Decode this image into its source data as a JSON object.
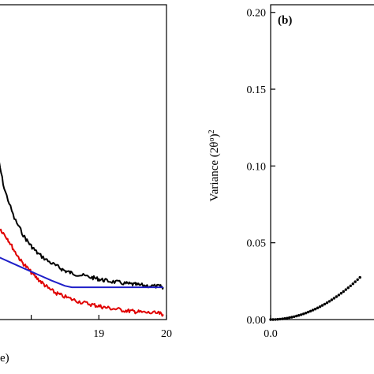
{
  "chart_data": [
    {
      "panel": "a",
      "type": "line",
      "xlabel": "e)",
      "ylabel": "",
      "xlim": [
        17.48,
        20.0
      ],
      "ylim": [
        -0.4,
        3.8
      ],
      "x_ticks": [
        18,
        19,
        20
      ],
      "x_tick_labels": [
        "",
        "19",
        "20"
      ],
      "grid": false,
      "series": [
        {
          "color": "#000000",
          "x": [
            17.48,
            17.6,
            17.75,
            17.9,
            18.0,
            18.1,
            18.25,
            18.4,
            18.5,
            18.6,
            18.75,
            18.9,
            19.0,
            19.1,
            19.25,
            19.4,
            19.5,
            19.6,
            19.75,
            19.9,
            19.95
          ],
          "y": [
            1.9,
            1.35,
            0.95,
            0.7,
            0.58,
            0.48,
            0.38,
            0.3,
            0.25,
            0.22,
            0.19,
            0.16,
            0.14,
            0.12,
            0.1,
            0.08,
            0.07,
            0.06,
            0.05,
            0.04,
            0.03
          ]
        },
        {
          "color": "#e00000",
          "x": [
            17.48,
            17.55,
            17.65,
            17.75,
            17.85,
            17.95,
            18.05,
            18.15,
            18.25,
            18.35,
            18.45,
            18.6,
            18.75,
            18.9,
            19.0,
            19.1,
            19.25,
            19.4,
            19.5,
            19.6,
            19.75,
            19.9,
            19.95
          ],
          "y": [
            0.85,
            0.8,
            0.68,
            0.52,
            0.38,
            0.28,
            0.18,
            0.1,
            0.02,
            -0.04,
            -0.08,
            -0.13,
            -0.17,
            -0.2,
            -0.22,
            -0.24,
            -0.26,
            -0.28,
            -0.29,
            -0.3,
            -0.31,
            -0.32,
            -0.33
          ]
        },
        {
          "color": "#1f1fc8",
          "x": [
            17.48,
            17.7,
            17.9,
            18.1,
            18.3,
            18.5,
            18.6,
            19.0,
            19.5,
            19.95
          ],
          "y": [
            0.45,
            0.36,
            0.28,
            0.2,
            0.12,
            0.05,
            0.03,
            0.03,
            0.03,
            0.03
          ]
        }
      ]
    },
    {
      "panel": "b",
      "type": "scatter",
      "panel_label": "(b)",
      "xlabel": "",
      "ylabel_main": "Variance (2θ",
      "ylabel_sup1": "o",
      "ylabel_close": ")",
      "ylabel_sup2": "2",
      "xlim": [
        0.0,
        0.47
      ],
      "ylim": [
        0.0,
        0.205
      ],
      "x_ticks": [
        0.0
      ],
      "x_tick_labels": [
        "0.0"
      ],
      "y_ticks": [
        0.0,
        0.05,
        0.1,
        0.15,
        0.2
      ],
      "y_tick_labels": [
        "0.00",
        "0.05",
        "0.10",
        "0.15",
        "0.20"
      ],
      "grid": false,
      "marker_color": "#000000",
      "formula": "y = 0.19 * x^2, x from 0.0 to 0.38 step 0.01"
    }
  ]
}
